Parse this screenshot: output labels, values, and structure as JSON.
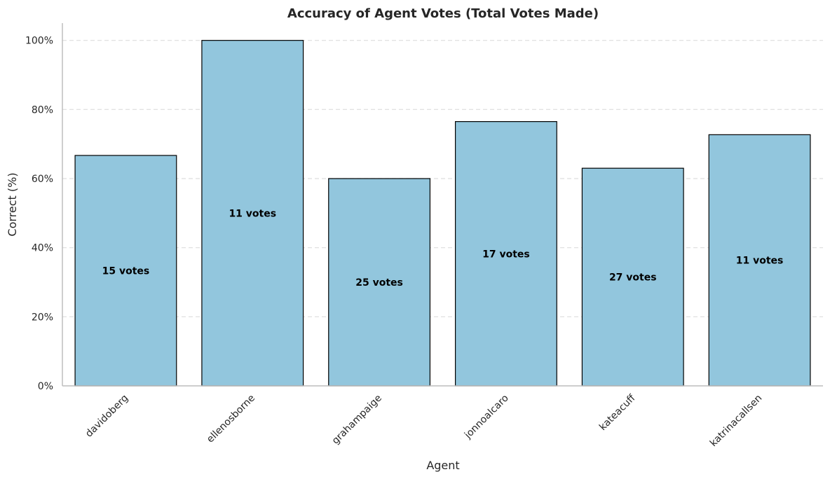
{
  "chart_data": {
    "type": "bar",
    "title": "Accuracy of Agent Votes (Total Votes Made)",
    "xlabel": "Agent",
    "ylabel": "Correct (%)",
    "ylim": [
      0,
      105
    ],
    "yticks": [
      0,
      20,
      40,
      60,
      80,
      100
    ],
    "ytick_labels": [
      "0%",
      "20%",
      "40%",
      "60%",
      "80%",
      "100%"
    ],
    "categories": [
      "davidoberg",
      "ellenosborne",
      "grahampaige",
      "jonnoalcaro",
      "kateacuff",
      "katrinacallsen"
    ],
    "values": [
      66.7,
      100.0,
      60.0,
      76.5,
      63.0,
      72.7
    ],
    "bar_labels": [
      "15 votes",
      "11 votes",
      "25 votes",
      "17 votes",
      "27 votes",
      "11 votes"
    ],
    "bar_color": "#92c6dd",
    "grid": true,
    "grid_axis": "y"
  }
}
